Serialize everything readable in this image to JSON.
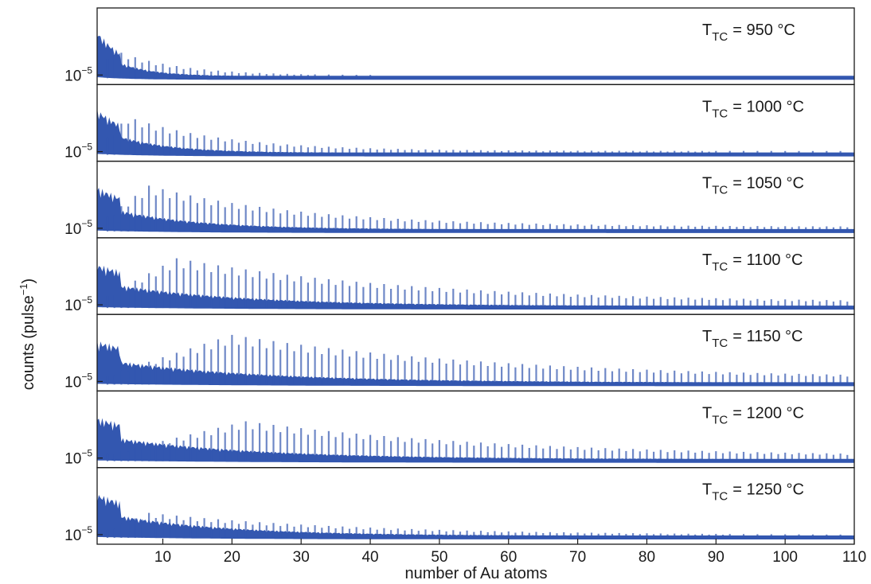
{
  "chart_data": {
    "type": "area",
    "layout": "stacked-panels",
    "xlabel": "number of Au atoms",
    "ylabel": "counts (pulse",
    "ylabel_sup": "−1",
    "ylabel_close": ")",
    "xlim": [
      0.5,
      110
    ],
    "x_ticks": [
      10,
      20,
      30,
      40,
      50,
      60,
      70,
      80,
      90,
      100,
      110
    ],
    "y_tick_base": "10",
    "y_tick_exp": "−5",
    "y_scale": "log",
    "grid": false,
    "series_color": "#3357b0",
    "panel_label_prefix": "T",
    "panel_label_sub": "TC",
    "panels": [
      {
        "label": "= 950 °C",
        "temperature_c": 950,
        "peak_max_n": 3,
        "decay_len": 9,
        "peak_strength": 0.3
      },
      {
        "label": "= 1000 °C",
        "temperature_c": 1000,
        "peak_max_n": 5,
        "decay_len": 14,
        "peak_strength": 0.55
      },
      {
        "label": "= 1050 °C",
        "temperature_c": 1050,
        "peak_max_n": 8,
        "decay_len": 22,
        "peak_strength": 0.75
      },
      {
        "label": "= 1100 °C",
        "temperature_c": 1100,
        "peak_max_n": 12,
        "decay_len": 35,
        "peak_strength": 0.85
      },
      {
        "label": "= 1150 °C",
        "temperature_c": 1150,
        "peak_max_n": 20,
        "decay_len": 40,
        "peak_strength": 0.85
      },
      {
        "label": "= 1200 °C",
        "temperature_c": 1200,
        "peak_max_n": 22,
        "decay_len": 38,
        "peak_strength": 0.6
      },
      {
        "label": "= 1250 °C",
        "temperature_c": 1250,
        "peak_max_n": 8,
        "decay_len": 30,
        "peak_strength": 0.22
      }
    ]
  }
}
